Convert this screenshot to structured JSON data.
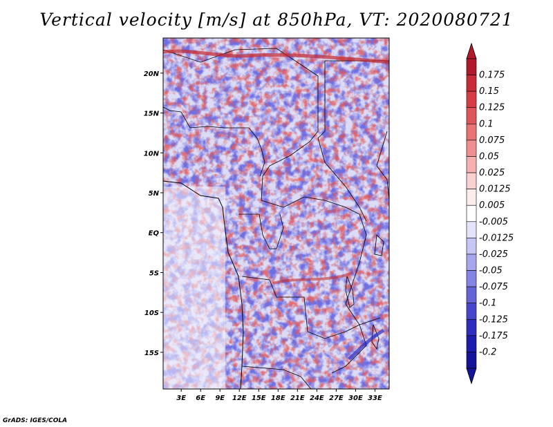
{
  "title": "Vertical velocity [m/s] at 850hPa, VT: 2020080721",
  "map": {
    "lat_labels": [
      "20N",
      "15N",
      "10N",
      "5N",
      "EQ",
      "5S",
      "10S",
      "15S"
    ],
    "lon_labels": [
      "3E",
      "6E",
      "9E",
      "12E",
      "15E",
      "18E",
      "21E",
      "24E",
      "27E",
      "30E",
      "33E"
    ],
    "lat_values": [
      20,
      15,
      10,
      5,
      0,
      -5,
      -10,
      -15
    ],
    "lon_values": [
      3,
      6,
      9,
      12,
      15,
      18,
      21,
      24,
      27,
      30,
      33
    ],
    "extent": {
      "lon_min": 0.2,
      "lon_max": 35.2,
      "lat_min": -19.6,
      "lat_max": 24.4
    }
  },
  "colorbar": {
    "labels": [
      "0.175",
      "0.15",
      "0.125",
      "0.1",
      "0.075",
      "0.05",
      "0.025",
      "0.0125",
      "0.005",
      "-0.005",
      "-0.0125",
      "-0.025",
      "-0.05",
      "-0.075",
      "-0.1",
      "-0.125",
      "-0.175",
      "-0.2"
    ],
    "colors": [
      "#b2182b",
      "#c92a38",
      "#d73c44",
      "#e0555a",
      "#e97272",
      "#f08f8f",
      "#f6b0b0",
      "#fbd0d0",
      "#fdecec",
      "#ffffff",
      "#e3e3fb",
      "#c6c6f5",
      "#a6a6ee",
      "#8484e4",
      "#6464d8",
      "#4646cc",
      "#2e2ebe",
      "#1c1cad",
      "#14149a"
    ],
    "top_color": "#b2182b",
    "bottom_color": "#14149a"
  },
  "credit": "GrADS: IGES/COLA"
}
